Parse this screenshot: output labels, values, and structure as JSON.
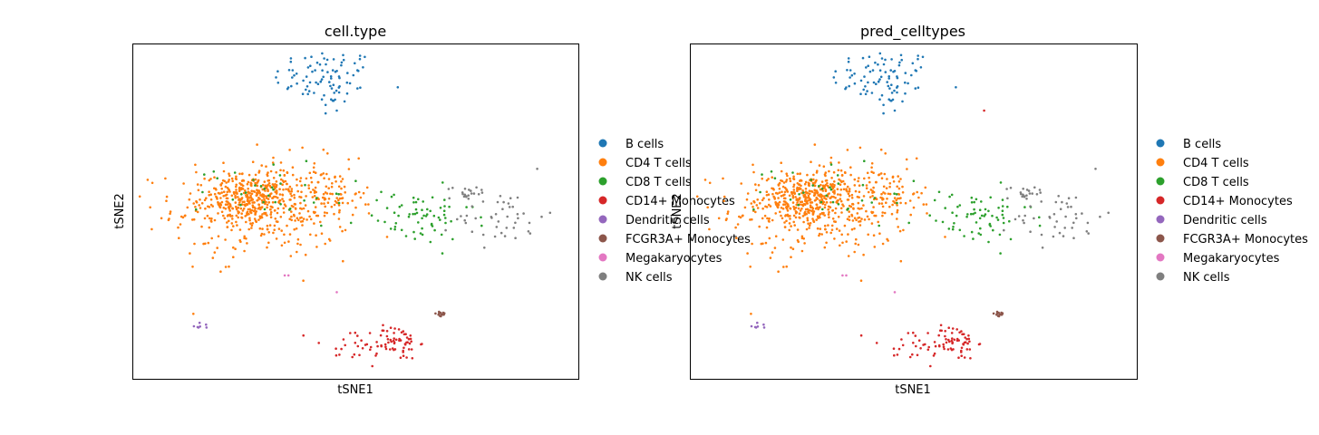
{
  "colors": {
    "B cells": "#1f77b4",
    "CD4 T cells": "#ff7f0e",
    "CD8 T cells": "#2ca02c",
    "CD14+ Monocytes": "#d62728",
    "Dendritic cells": "#9467bd",
    "FCGR3A+ Monocytes": "#8c564b",
    "Megakaryocytes": "#e377c2",
    "NK cells": "#7f7f7f"
  },
  "chart_data": [
    {
      "type": "scatter",
      "title": "cell.type",
      "xlabel": "tSNE1",
      "ylabel": "tSNE2",
      "xticks": "none",
      "yticks": "none",
      "legend_placement": "right, outside",
      "legend": [
        "B cells",
        "CD4 T cells",
        "CD8 T cells",
        "CD14+ Monocytes",
        "Dendritic cells",
        "FCGR3A+ Monocytes",
        "Megakaryocytes",
        "NK cells"
      ],
      "clusters": [
        {
          "name": "B cells",
          "center": [
            42,
            88
          ],
          "spread": [
            7,
            5
          ],
          "n": 85
        },
        {
          "name": "B cells (outliers)",
          "label": "B cells",
          "points": [
            [
              41,
              80
            ],
            [
              42,
              78
            ],
            [
              45,
              76
            ],
            [
              42,
              75
            ]
          ]
        },
        {
          "name": "CD4 T cells",
          "center": [
            25,
            41
          ],
          "spread": [
            12,
            9
          ],
          "n": 360
        },
        {
          "name": "CD4 T cells (dense core)",
          "label": "CD4 T cells",
          "center": [
            22,
            45
          ],
          "spread": [
            6,
            4
          ],
          "n": 280
        },
        {
          "name": "CD4 T cells (tail)",
          "label": "CD4 T cells",
          "center": [
            44,
            46
          ],
          "spread": [
            5,
            4
          ],
          "n": 60
        },
        {
          "name": "CD8 T cells",
          "center": [
            66,
            38
          ],
          "spread": [
            8,
            5
          ],
          "n": 70
        },
        {
          "name": "CD8 T cells (mixed)",
          "label": "CD8 T cells",
          "center": [
            28,
            47
          ],
          "spread": [
            10,
            6
          ],
          "n": 35
        },
        {
          "name": "NK cells",
          "center": [
            89,
            38
          ],
          "spread": [
            6,
            5
          ],
          "n": 45
        },
        {
          "name": "NK cells (upper)",
          "label": "NK cells",
          "center": [
            80,
            47
          ],
          "spread": [
            3,
            1.5
          ],
          "n": 18
        },
        {
          "name": "CD14+ Monocytes",
          "center": [
            61,
            -7
          ],
          "spread": [
            3,
            3
          ],
          "n": 65
        },
        {
          "name": "CD14+ Monocytes (sparse)",
          "label": "CD14+ Monocytes",
          "center": [
            48,
            -9
          ],
          "spread": [
            6,
            4
          ],
          "n": 20
        },
        {
          "name": "FCGR3A+ Monocytes",
          "center": [
            73,
            3
          ],
          "spread": [
            1,
            0.5
          ],
          "n": 14
        },
        {
          "name": "Dendritic cells",
          "center": [
            9,
            -1
          ],
          "spread": [
            1.5,
            0.5
          ],
          "n": 7
        },
        {
          "name": "Megakaryocytes",
          "points": [
            [
              31,
              17
            ],
            [
              32,
              17
            ],
            [
              45,
              11
            ]
          ]
        }
      ]
    },
    {
      "type": "scatter",
      "title": "pred_celltypes",
      "xlabel": "tSNE1",
      "ylabel": "tSNE2",
      "xticks": "none",
      "yticks": "none",
      "legend_placement": "right, outside",
      "legend": [
        "B cells",
        "CD4 T cells",
        "CD8 T cells",
        "CD14+ Monocytes",
        "Dendritic cells",
        "FCGR3A+ Monocytes",
        "Megakaryocytes",
        "NK cells"
      ],
      "clusters": [
        {
          "name": "B cells",
          "center": [
            42,
            88
          ],
          "spread": [
            7,
            5
          ],
          "n": 85
        },
        {
          "name": "B cells (outliers)",
          "label": "B cells",
          "points": [
            [
              41,
              80
            ],
            [
              42,
              78
            ],
            [
              45,
              76
            ],
            [
              42,
              75
            ]
          ]
        },
        {
          "name": "CD4 T cells",
          "center": [
            25,
            41
          ],
          "spread": [
            12,
            9
          ],
          "n": 360
        },
        {
          "name": "CD4 T cells (dense core)",
          "label": "CD4 T cells",
          "center": [
            22,
            45
          ],
          "spread": [
            6,
            4
          ],
          "n": 280
        },
        {
          "name": "CD4 T cells (tail)",
          "label": "CD4 T cells",
          "center": [
            44,
            46
          ],
          "spread": [
            5,
            4
          ],
          "n": 60
        },
        {
          "name": "CD8 T cells",
          "center": [
            66,
            38
          ],
          "spread": [
            8,
            5
          ],
          "n": 70
        },
        {
          "name": "CD8 T cells (mixed)",
          "label": "CD8 T cells",
          "center": [
            28,
            47
          ],
          "spread": [
            10,
            6
          ],
          "n": 35
        },
        {
          "name": "NK cells",
          "center": [
            89,
            38
          ],
          "spread": [
            6,
            5
          ],
          "n": 45
        },
        {
          "name": "NK cells (upper)",
          "label": "NK cells",
          "center": [
            80,
            47
          ],
          "spread": [
            3,
            1.5
          ],
          "n": 18
        },
        {
          "name": "CD14+ Monocytes",
          "center": [
            61,
            -7
          ],
          "spread": [
            3,
            3
          ],
          "n": 65
        },
        {
          "name": "CD14+ Monocytes (sparse)",
          "label": "CD14+ Monocytes",
          "center": [
            48,
            -9
          ],
          "spread": [
            6,
            4
          ],
          "n": 20
        },
        {
          "name": "CD14+ Monocytes (isolated)",
          "label": "CD14+ Monocytes",
          "points": [
            [
              69,
              76
            ]
          ]
        },
        {
          "name": "FCGR3A+ Monocytes",
          "center": [
            73,
            3
          ],
          "spread": [
            1,
            0.5
          ],
          "n": 14
        },
        {
          "name": "Dendritic cells",
          "center": [
            9,
            -1
          ],
          "spread": [
            1.5,
            0.5
          ],
          "n": 7
        },
        {
          "name": "Megakaryocytes",
          "points": [
            [
              31,
              17
            ],
            [
              32,
              17
            ],
            [
              45,
              11
            ]
          ]
        }
      ]
    }
  ]
}
